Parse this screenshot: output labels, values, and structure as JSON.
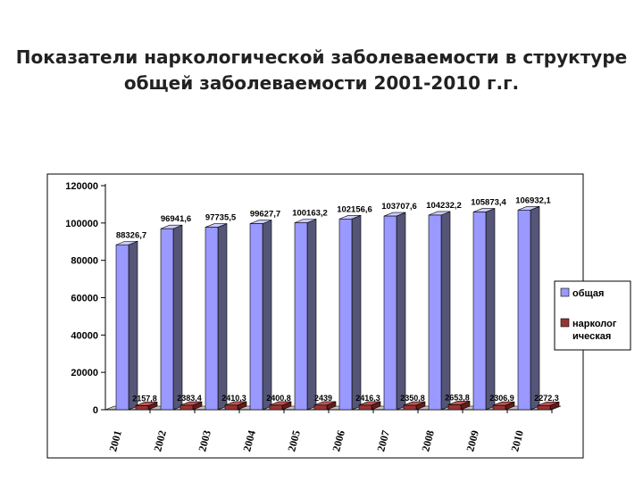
{
  "title_lines": [
    "Показатели наркологической заболеваемости в структуре",
    "общей заболеваемости 2001-2010 г.г."
  ],
  "chart_data": {
    "type": "bar",
    "categories": [
      "2001",
      "2002",
      "2003",
      "2004",
      "2005",
      "2006",
      "2007",
      "2008",
      "2009",
      "2010"
    ],
    "series": [
      {
        "name": "общая",
        "color": "#9999ff",
        "values": [
          88326.7,
          96941.6,
          97735.5,
          99627.7,
          100163.2,
          102156.6,
          103707.6,
          104232.2,
          105873.4,
          106932.1
        ],
        "labels": [
          "88326,7",
          "96941,6",
          "97735,5",
          "99627,7",
          "100163,2",
          "102156,6",
          "103707,6",
          "104232,2",
          "105873,4",
          "106932,1"
        ]
      },
      {
        "name": "наркологическая",
        "legend_lines": [
          "нарколог",
          "ическая"
        ],
        "color": "#993333",
        "values": [
          2157.8,
          2383.4,
          2410.3,
          2400.8,
          2439,
          2416.3,
          2350.8,
          2653.8,
          2306.9,
          2272.3
        ],
        "labels": [
          "2157,8",
          "2383,4",
          "2410,3",
          "2400,8",
          "2439",
          "2416,3",
          "2350,8",
          "2653,8",
          "2306,9",
          "2272,3"
        ]
      }
    ],
    "y_ticks": [
      "0",
      "20000",
      "40000",
      "60000",
      "80000",
      "100000",
      "120000"
    ],
    "ylim": [
      0,
      120000
    ],
    "legend_position": "right",
    "style": "3d-bar"
  }
}
